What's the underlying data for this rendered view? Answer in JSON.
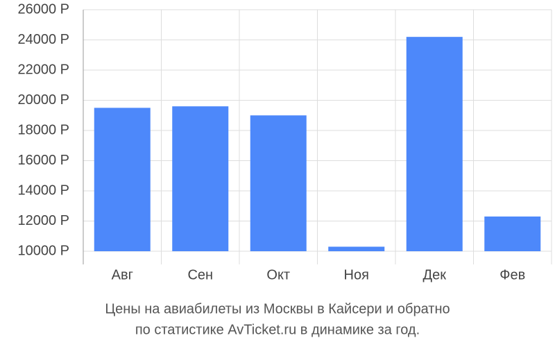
{
  "chart_data": {
    "type": "bar",
    "title": "Цены на авиабилеты из Москвы в Кайсери и обратно",
    "subtitle": "по статистике AvTicket.ru в динамике за год.",
    "categories": [
      "Авг",
      "Сен",
      "Окт",
      "Ноя",
      "Дек",
      "Фев"
    ],
    "values": [
      19500,
      19600,
      19000,
      10300,
      24200,
      12300
    ],
    "color": "#4d88fa",
    "ylim": [
      10000,
      26000
    ],
    "yticks": [
      {
        "value": 10000,
        "label": "10000 Р"
      },
      {
        "value": 12000,
        "label": "12000 Р"
      },
      {
        "value": 14000,
        "label": "14000 Р"
      },
      {
        "value": 16000,
        "label": "16000 Р"
      },
      {
        "value": 18000,
        "label": "18000 Р"
      },
      {
        "value": 20000,
        "label": "20000 Р"
      },
      {
        "value": 22000,
        "label": "22000 Р"
      },
      {
        "value": 24000,
        "label": "24000 Р"
      },
      {
        "value": 26000,
        "label": "26000 Р"
      }
    ],
    "grid": true
  }
}
